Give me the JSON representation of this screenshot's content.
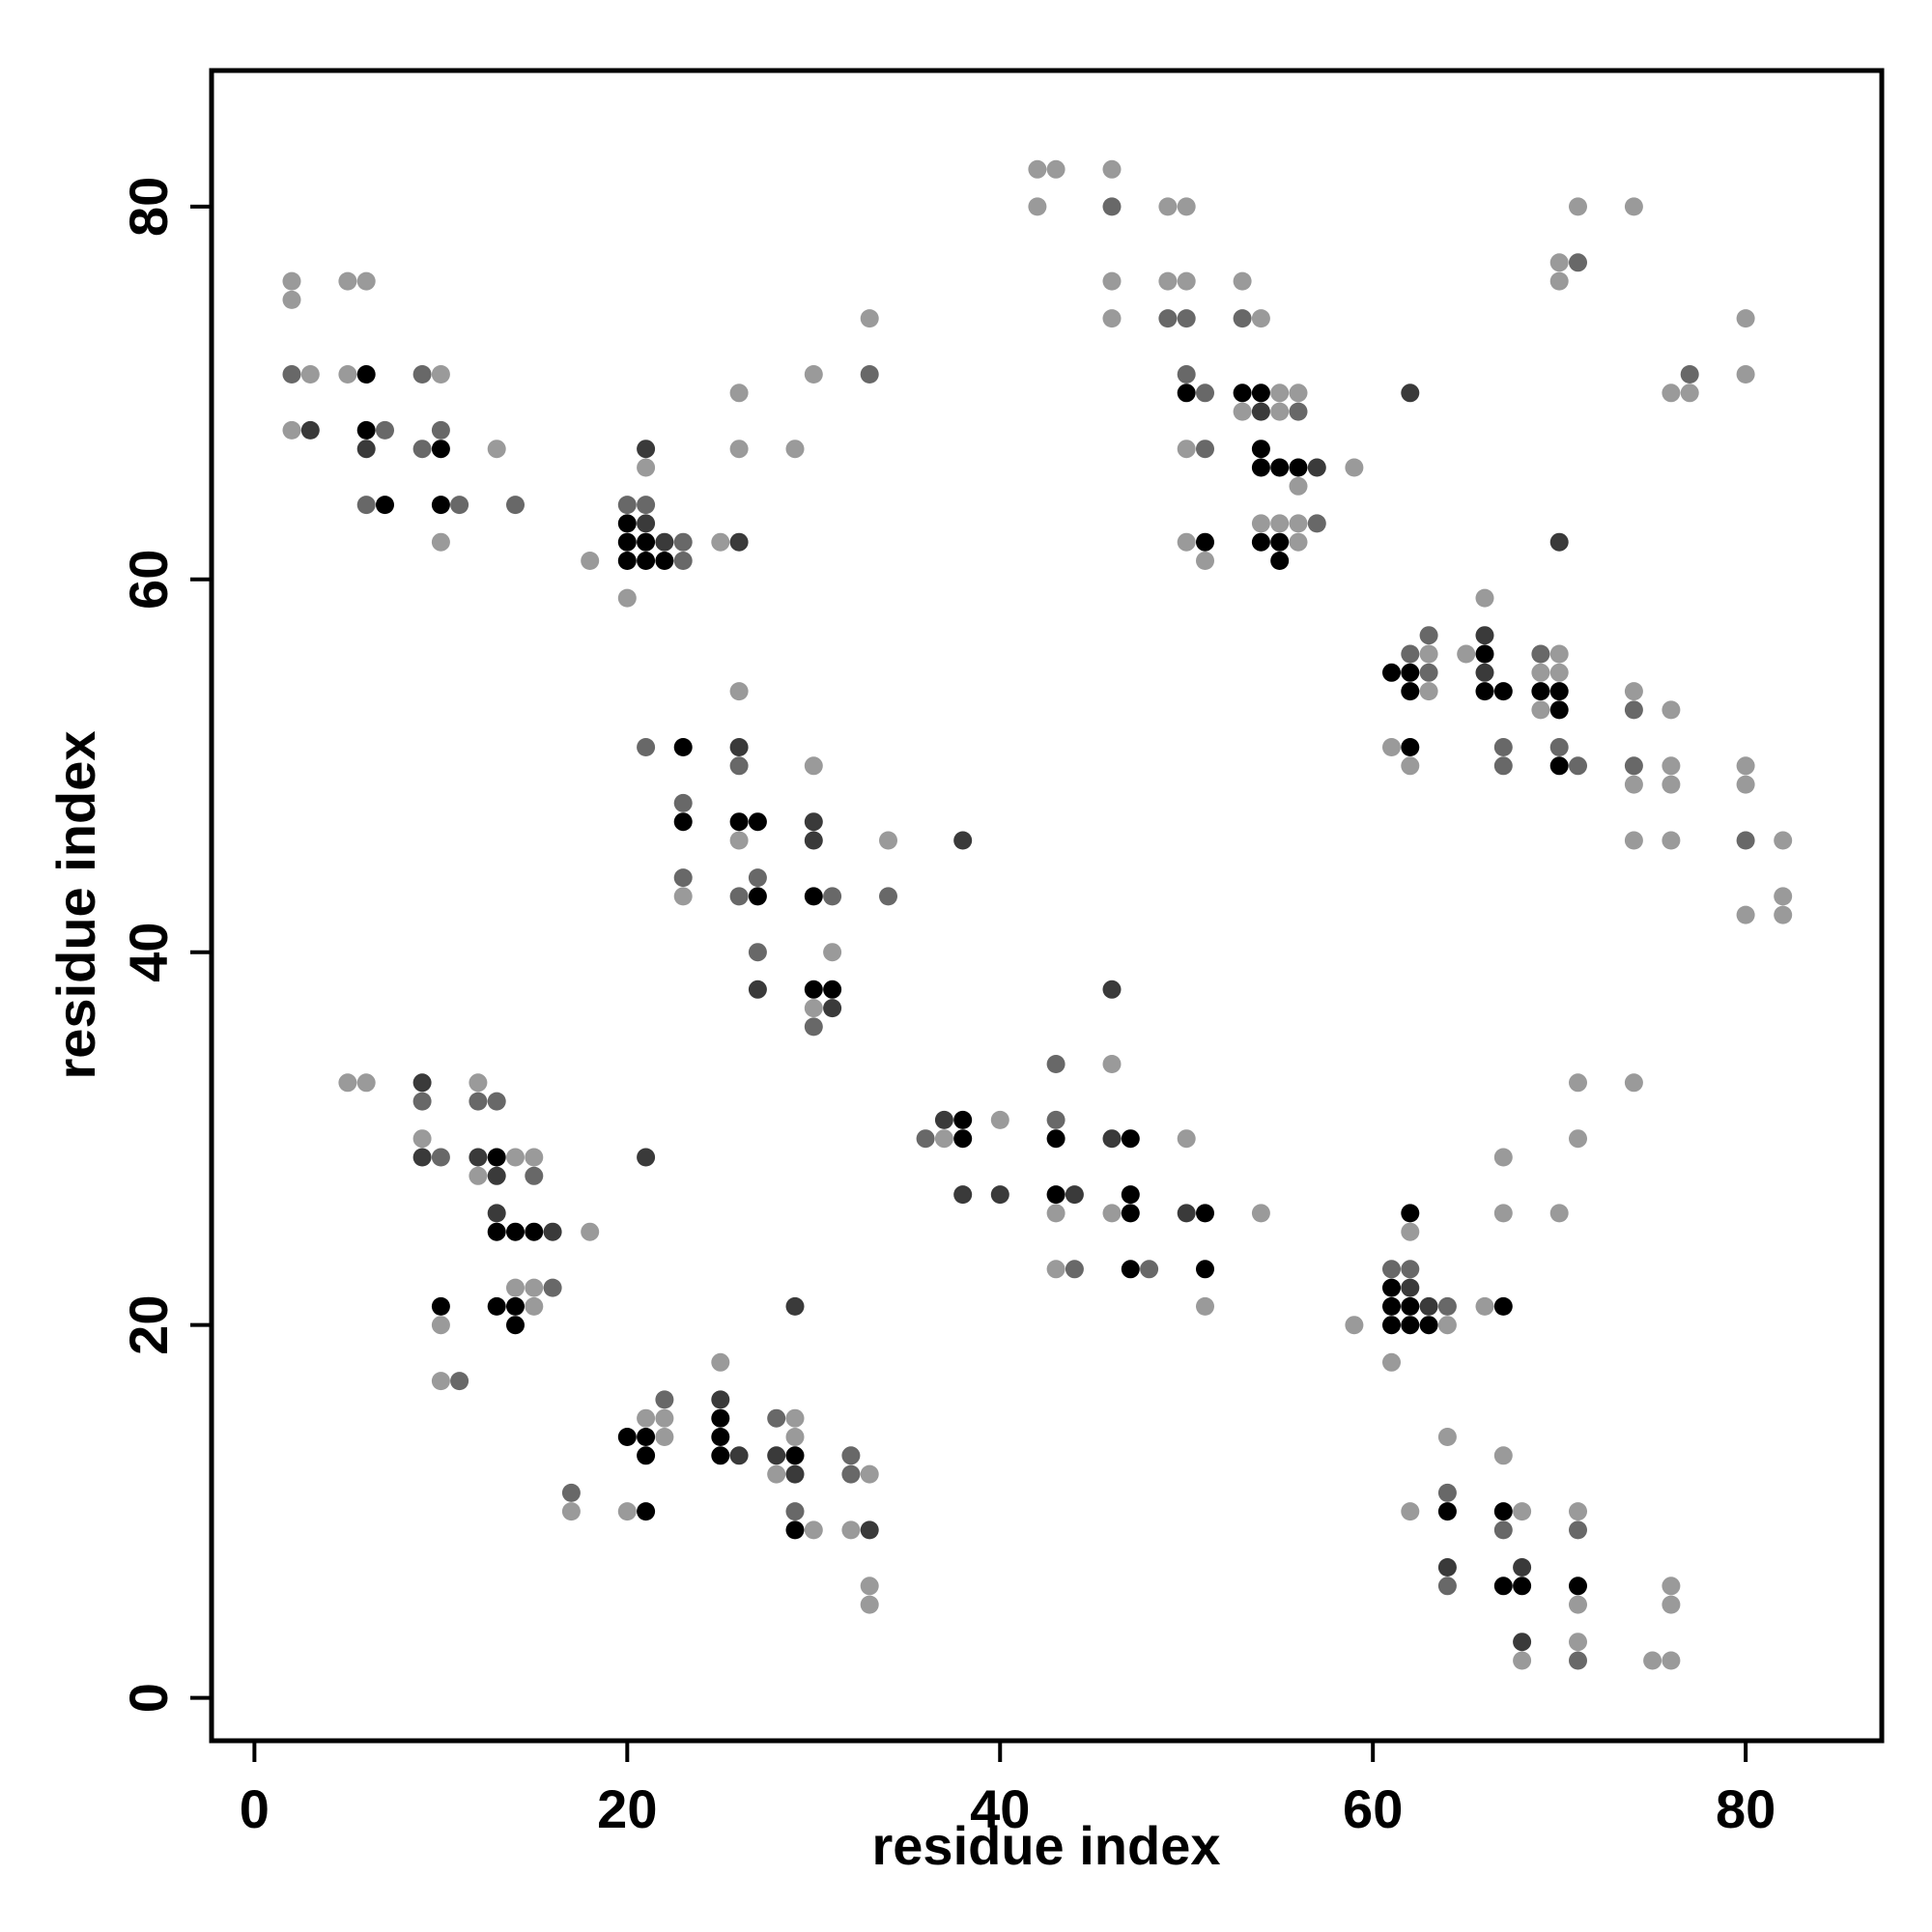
{
  "chart_data": {
    "type": "scatter",
    "title": "",
    "xlabel": "residue index",
    "ylabel": "residue index",
    "xlim": [
      -2.3,
      87.3
    ],
    "ylim": [
      -2.3,
      87.3
    ],
    "xticks": [
      0,
      20,
      40,
      60,
      80
    ],
    "yticks": [
      0,
      20,
      40,
      60,
      80
    ],
    "grid": false,
    "legend": "none",
    "marker": "filled circle, grayscale intensity by contact strength",
    "colors": {
      "black": "#000000",
      "dark": "#3a3a3a",
      "medium": "#686868",
      "light": "#9a9a9a"
    },
    "points": [
      [
        2,
        76,
        3
      ],
      [
        2,
        75,
        3
      ],
      [
        2,
        71,
        2
      ],
      [
        3,
        71,
        3
      ],
      [
        2,
        68,
        3
      ],
      [
        3,
        68,
        1
      ],
      [
        5,
        76,
        3
      ],
      [
        6,
        76,
        3
      ],
      [
        5,
        71,
        3
      ],
      [
        6,
        71,
        0
      ],
      [
        6,
        68,
        0
      ],
      [
        6,
        67,
        1
      ],
      [
        7,
        68,
        2
      ],
      [
        6,
        64,
        2
      ],
      [
        7,
        64,
        0
      ],
      [
        9,
        71,
        2
      ],
      [
        10,
        71,
        3
      ],
      [
        9,
        67,
        2
      ],
      [
        10,
        67,
        0
      ],
      [
        10,
        68,
        2
      ],
      [
        10,
        64,
        0
      ],
      [
        11,
        64,
        2
      ],
      [
        10,
        62,
        3
      ],
      [
        13,
        67,
        3
      ],
      [
        14,
        64,
        2
      ],
      [
        18,
        61,
        3
      ],
      [
        20,
        64,
        2
      ],
      [
        21,
        64,
        2
      ],
      [
        21,
        67,
        1
      ],
      [
        21,
        66,
        3
      ],
      [
        20,
        63,
        0
      ],
      [
        21,
        63,
        1
      ],
      [
        20,
        62,
        0
      ],
      [
        21,
        62,
        0
      ],
      [
        22,
        62,
        1
      ],
      [
        23,
        62,
        2
      ],
      [
        20,
        61,
        0
      ],
      [
        21,
        61,
        0
      ],
      [
        22,
        61,
        0
      ],
      [
        23,
        61,
        2
      ],
      [
        20,
        59,
        3
      ],
      [
        25,
        62,
        3
      ],
      [
        26,
        62,
        1
      ],
      [
        26,
        67,
        3
      ],
      [
        26,
        70,
        3
      ],
      [
        29,
        67,
        3
      ],
      [
        30,
        71,
        3
      ],
      [
        33,
        71,
        2
      ],
      [
        33,
        74,
        3
      ],
      [
        21,
        51,
        2
      ],
      [
        23,
        51,
        0
      ],
      [
        26,
        54,
        3
      ],
      [
        26,
        51,
        1
      ],
      [
        26,
        50,
        2
      ],
      [
        23,
        48,
        2
      ],
      [
        23,
        47,
        0
      ],
      [
        26,
        47,
        0
      ],
      [
        27,
        47,
        0
      ],
      [
        26,
        46,
        3
      ],
      [
        23,
        44,
        2
      ],
      [
        23,
        43,
        3
      ],
      [
        26,
        43,
        2
      ],
      [
        27,
        43,
        0
      ],
      [
        27,
        44,
        2
      ],
      [
        30,
        50,
        3
      ],
      [
        30,
        47,
        1
      ],
      [
        30,
        46,
        1
      ],
      [
        30,
        43,
        0
      ],
      [
        31,
        43,
        2
      ],
      [
        34,
        46,
        3
      ],
      [
        34,
        43,
        2
      ],
      [
        27,
        40,
        2
      ],
      [
        27,
        38,
        1
      ],
      [
        31,
        40,
        3
      ],
      [
        30,
        38,
        0
      ],
      [
        31,
        38,
        0
      ],
      [
        30,
        37,
        3
      ],
      [
        31,
        37,
        1
      ],
      [
        30,
        36,
        2
      ],
      [
        38,
        46,
        1
      ],
      [
        5,
        33,
        3
      ],
      [
        6,
        33,
        3
      ],
      [
        9,
        33,
        1
      ],
      [
        9,
        32,
        2
      ],
      [
        9,
        30,
        3
      ],
      [
        9,
        29,
        1
      ],
      [
        10,
        29,
        2
      ],
      [
        12,
        33,
        3
      ],
      [
        12,
        32,
        2
      ],
      [
        13,
        32,
        2
      ],
      [
        12,
        29,
        1
      ],
      [
        13,
        29,
        0
      ],
      [
        12,
        28,
        3
      ],
      [
        13,
        28,
        1
      ],
      [
        14,
        29,
        3
      ],
      [
        15,
        29,
        3
      ],
      [
        15,
        28,
        2
      ],
      [
        13,
        26,
        1
      ],
      [
        13,
        25,
        0
      ],
      [
        14,
        25,
        0
      ],
      [
        15,
        25,
        0
      ],
      [
        16,
        25,
        1
      ],
      [
        18,
        25,
        3
      ],
      [
        14,
        22,
        3
      ],
      [
        15,
        22,
        3
      ],
      [
        16,
        22,
        2
      ],
      [
        15,
        21,
        3
      ],
      [
        13,
        21,
        0
      ],
      [
        14,
        21,
        0
      ],
      [
        14,
        20,
        0
      ],
      [
        10,
        21,
        0
      ],
      [
        10,
        20,
        3
      ],
      [
        10,
        17,
        3
      ],
      [
        11,
        17,
        2
      ],
      [
        21,
        29,
        1
      ],
      [
        17,
        11,
        2
      ],
      [
        17,
        10,
        3
      ],
      [
        20,
        14,
        0
      ],
      [
        21,
        14,
        0
      ],
      [
        21,
        15,
        3
      ],
      [
        22,
        15,
        3
      ],
      [
        22,
        16,
        2
      ],
      [
        22,
        14,
        3
      ],
      [
        21,
        13,
        0
      ],
      [
        20,
        10,
        3
      ],
      [
        21,
        10,
        0
      ],
      [
        25,
        18,
        3
      ],
      [
        25,
        16,
        1
      ],
      [
        25,
        15,
        0
      ],
      [
        25,
        14,
        0
      ],
      [
        25,
        13,
        0
      ],
      [
        26,
        13,
        1
      ],
      [
        28,
        15,
        2
      ],
      [
        29,
        15,
        3
      ],
      [
        28,
        13,
        1
      ],
      [
        29,
        13,
        0
      ],
      [
        29,
        14,
        3
      ],
      [
        28,
        12,
        3
      ],
      [
        29,
        12,
        1
      ],
      [
        29,
        10,
        2
      ],
      [
        29,
        9,
        0
      ],
      [
        30,
        9,
        3
      ],
      [
        29,
        21,
        1
      ],
      [
        32,
        13,
        2
      ],
      [
        32,
        12,
        2
      ],
      [
        33,
        12,
        3
      ],
      [
        32,
        9,
        3
      ],
      [
        33,
        9,
        1
      ],
      [
        33,
        6,
        3
      ],
      [
        33,
        5,
        3
      ],
      [
        36,
        30,
        2
      ],
      [
        37,
        31,
        1
      ],
      [
        37,
        30,
        3
      ],
      [
        38,
        31,
        0
      ],
      [
        38,
        30,
        0
      ],
      [
        40,
        31,
        3
      ],
      [
        38,
        27,
        1
      ],
      [
        40,
        27,
        1
      ],
      [
        42,
        82,
        3
      ],
      [
        43,
        82,
        3
      ],
      [
        42,
        80,
        3
      ],
      [
        46,
        82,
        3
      ],
      [
        46,
        80,
        2
      ],
      [
        46,
        76,
        3
      ],
      [
        46,
        74,
        3
      ],
      [
        49,
        80,
        3
      ],
      [
        50,
        80,
        3
      ],
      [
        49,
        76,
        3
      ],
      [
        50,
        76,
        3
      ],
      [
        49,
        74,
        2
      ],
      [
        50,
        74,
        2
      ],
      [
        50,
        71,
        2
      ],
      [
        50,
        70,
        0
      ],
      [
        51,
        70,
        2
      ],
      [
        50,
        67,
        3
      ],
      [
        51,
        67,
        2
      ],
      [
        50,
        62,
        3
      ],
      [
        51,
        62,
        0
      ],
      [
        51,
        61,
        3
      ],
      [
        53,
        76,
        3
      ],
      [
        53,
        74,
        2
      ],
      [
        54,
        74,
        3
      ],
      [
        53,
        70,
        0
      ],
      [
        54,
        70,
        0
      ],
      [
        55,
        70,
        3
      ],
      [
        56,
        70,
        3
      ],
      [
        53,
        69,
        3
      ],
      [
        54,
        69,
        1
      ],
      [
        55,
        69,
        3
      ],
      [
        56,
        69,
        2
      ],
      [
        54,
        67,
        0
      ],
      [
        54,
        66,
        0
      ],
      [
        55,
        66,
        0
      ],
      [
        56,
        66,
        0
      ],
      [
        57,
        66,
        1
      ],
      [
        59,
        66,
        3
      ],
      [
        56,
        65,
        3
      ],
      [
        54,
        63,
        3
      ],
      [
        55,
        63,
        3
      ],
      [
        56,
        63,
        3
      ],
      [
        57,
        63,
        2
      ],
      [
        54,
        62,
        0
      ],
      [
        55,
        62,
        0
      ],
      [
        56,
        62,
        3
      ],
      [
        55,
        61,
        0
      ],
      [
        43,
        34,
        2
      ],
      [
        43,
        31,
        2
      ],
      [
        43,
        30,
        0
      ],
      [
        46,
        38,
        1
      ],
      [
        46,
        34,
        3
      ],
      [
        46,
        30,
        1
      ],
      [
        47,
        30,
        0
      ],
      [
        43,
        27,
        0
      ],
      [
        44,
        27,
        1
      ],
      [
        43,
        26,
        3
      ],
      [
        46,
        26,
        3
      ],
      [
        47,
        27,
        0
      ],
      [
        47,
        26,
        0
      ],
      [
        43,
        23,
        3
      ],
      [
        44,
        23,
        2
      ],
      [
        47,
        23,
        0
      ],
      [
        48,
        23,
        2
      ],
      [
        50,
        30,
        3
      ],
      [
        50,
        26,
        1
      ],
      [
        51,
        26,
        0
      ],
      [
        51,
        23,
        0
      ],
      [
        51,
        21,
        3
      ],
      [
        54,
        26,
        3
      ],
      [
        59,
        20,
        3
      ],
      [
        61,
        23,
        2
      ],
      [
        62,
        23,
        2
      ],
      [
        61,
        22,
        0
      ],
      [
        62,
        22,
        1
      ],
      [
        61,
        21,
        0
      ],
      [
        62,
        21,
        0
      ],
      [
        63,
        21,
        1
      ],
      [
        64,
        21,
        2
      ],
      [
        61,
        20,
        0
      ],
      [
        62,
        20,
        0
      ],
      [
        63,
        20,
        0
      ],
      [
        64,
        20,
        3
      ],
      [
        61,
        18,
        3
      ],
      [
        62,
        26,
        0
      ],
      [
        62,
        25,
        3
      ],
      [
        66,
        21,
        3
      ],
      [
        67,
        21,
        0
      ],
      [
        67,
        29,
        3
      ],
      [
        67,
        26,
        3
      ],
      [
        70,
        26,
        3
      ],
      [
        71,
        33,
        3
      ],
      [
        71,
        30,
        3
      ],
      [
        74,
        33,
        3
      ],
      [
        62,
        10,
        3
      ],
      [
        64,
        14,
        3
      ],
      [
        64,
        11,
        2
      ],
      [
        64,
        10,
        0
      ],
      [
        64,
        7,
        1
      ],
      [
        64,
        6,
        2
      ],
      [
        67,
        13,
        3
      ],
      [
        67,
        10,
        0
      ],
      [
        67,
        9,
        2
      ],
      [
        68,
        10,
        3
      ],
      [
        67,
        6,
        0
      ],
      [
        68,
        6,
        0
      ],
      [
        68,
        7,
        1
      ],
      [
        68,
        3,
        1
      ],
      [
        68,
        2,
        3
      ],
      [
        71,
        10,
        3
      ],
      [
        71,
        9,
        2
      ],
      [
        71,
        6,
        0
      ],
      [
        71,
        5,
        3
      ],
      [
        71,
        3,
        3
      ],
      [
        71,
        2,
        2
      ],
      [
        75,
        2,
        3
      ],
      [
        76,
        2,
        3
      ],
      [
        76,
        6,
        3
      ],
      [
        76,
        5,
        3
      ],
      [
        62,
        70,
        1
      ],
      [
        70,
        62,
        1
      ],
      [
        70,
        77,
        3
      ],
      [
        70,
        76,
        3
      ],
      [
        71,
        77,
        2
      ],
      [
        71,
        80,
        3
      ],
      [
        74,
        80,
        3
      ],
      [
        76,
        70,
        3
      ],
      [
        77,
        70,
        3
      ],
      [
        77,
        71,
        2
      ],
      [
        80,
        74,
        3
      ],
      [
        80,
        71,
        3
      ],
      [
        61,
        55,
        0
      ],
      [
        62,
        55,
        0
      ],
      [
        62,
        56,
        2
      ],
      [
        63,
        56,
        3
      ],
      [
        63,
        57,
        2
      ],
      [
        62,
        54,
        0
      ],
      [
        63,
        55,
        2
      ],
      [
        63,
        54,
        3
      ],
      [
        61,
        51,
        3
      ],
      [
        62,
        51,
        0
      ],
      [
        62,
        50,
        3
      ],
      [
        65,
        56,
        3
      ],
      [
        66,
        59,
        3
      ],
      [
        66,
        57,
        1
      ],
      [
        66,
        56,
        0
      ],
      [
        66,
        55,
        1
      ],
      [
        66,
        54,
        0
      ],
      [
        67,
        54,
        0
      ],
      [
        67,
        51,
        2
      ],
      [
        67,
        50,
        2
      ],
      [
        69,
        56,
        2
      ],
      [
        70,
        56,
        3
      ],
      [
        69,
        55,
        3
      ],
      [
        70,
        55,
        3
      ],
      [
        69,
        54,
        0
      ],
      [
        70,
        54,
        0
      ],
      [
        69,
        53,
        3
      ],
      [
        70,
        53,
        0
      ],
      [
        70,
        51,
        2
      ],
      [
        70,
        50,
        0
      ],
      [
        71,
        50,
        2
      ],
      [
        74,
        54,
        3
      ],
      [
        74,
        53,
        2
      ],
      [
        74,
        50,
        2
      ],
      [
        74,
        49,
        3
      ],
      [
        76,
        53,
        3
      ],
      [
        76,
        50,
        3
      ],
      [
        76,
        49,
        3
      ],
      [
        74,
        46,
        3
      ],
      [
        76,
        46,
        3
      ],
      [
        80,
        50,
        3
      ],
      [
        80,
        49,
        3
      ],
      [
        80,
        46,
        2
      ],
      [
        82,
        46,
        3
      ],
      [
        82,
        43,
        3
      ],
      [
        80,
        42,
        3
      ],
      [
        82,
        42,
        3
      ]
    ]
  }
}
